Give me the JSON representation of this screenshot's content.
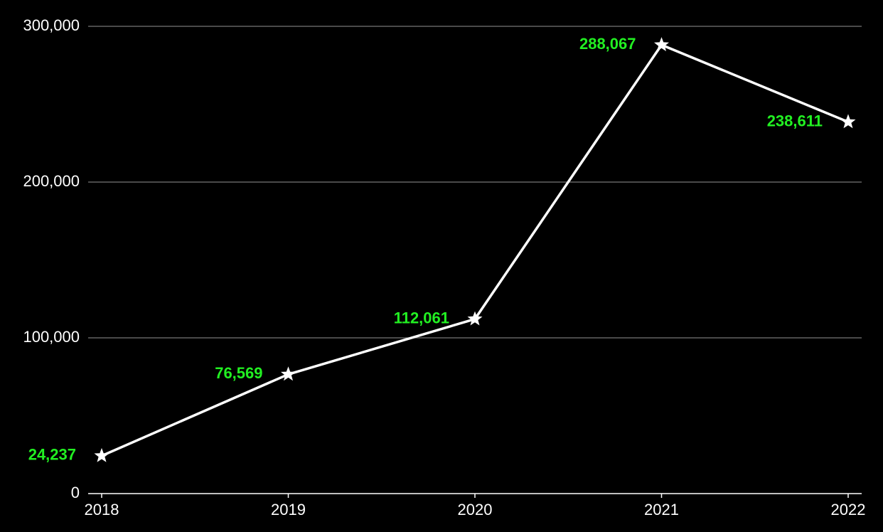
{
  "chart_data": {
    "type": "line",
    "categories": [
      "2018",
      "2019",
      "2020",
      "2021",
      "2022"
    ],
    "series": [
      {
        "color": "#ffffff",
        "label_color": "#22f022",
        "marker": "star",
        "values": [
          24237,
          76569,
          112061,
          288067,
          238611
        ],
        "value_labels": [
          "24,237",
          "76,569",
          "112,061",
          "288,067",
          "238,611"
        ]
      }
    ],
    "ylim": [
      0,
      300000
    ],
    "yticks": [
      0,
      {
        "value": 100000,
        "label": "100,000"
      },
      {
        "value": 200000,
        "label": "200,000"
      },
      {
        "value": 300000,
        "label": "300,000"
      }
    ],
    "grid": true
  }
}
